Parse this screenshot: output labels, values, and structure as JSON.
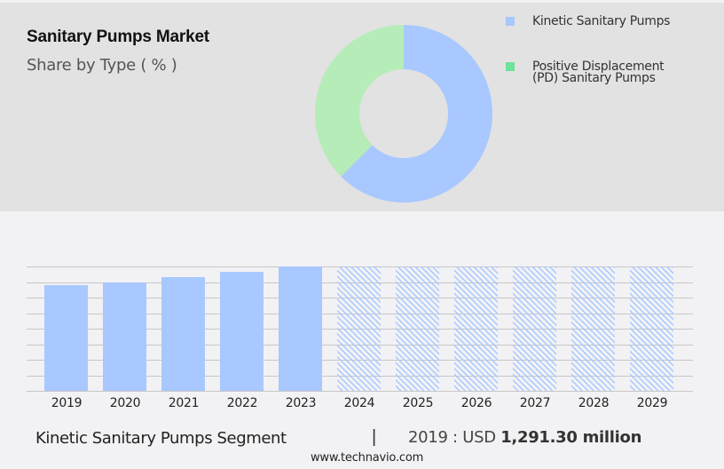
{
  "header": {
    "title": "Sanitary Pumps Market",
    "subtitle": "Share by Type ( % )"
  },
  "colors": {
    "top_panel_bg": "#e2e2e2",
    "page_bg": "#f2f2f4",
    "kinetic": "#a8c8ff",
    "pd_donut": "#b5ecb8",
    "pd_legend": "#6ee39a",
    "gridline": "#c7c7c7"
  },
  "legend": {
    "items": [
      {
        "label": "Kinetic Sanitary Pumps",
        "color": "#a8c8ff"
      },
      {
        "label_line1": "Positive Displacement",
        "label_line2": "(PD) Sanitary Pumps",
        "color": "#6ee39a"
      }
    ]
  },
  "footer": {
    "segment_label": "Kinetic Sanitary Pumps Segment",
    "separator": "|",
    "value_prefix": "2019 : USD ",
    "value_bold": "1,291.30 million",
    "website": "www.technavio.com"
  },
  "chart_data": [
    {
      "type": "pie",
      "variant": "donut",
      "title": "Sanitary Pumps Market",
      "subtitle": "Share by Type ( % )",
      "categories": [
        "Kinetic Sanitary Pumps",
        "Positive Displacement (PD) Sanitary Pumps"
      ],
      "values": [
        62.5,
        37.5
      ],
      "colors": [
        "#a8c8ff",
        "#b5ecb8"
      ],
      "legend_position": "right"
    },
    {
      "type": "bar",
      "title": "Kinetic Sanitary Pumps Segment",
      "categories": [
        "2019",
        "2020",
        "2021",
        "2022",
        "2023",
        "2024",
        "2025",
        "2026",
        "2027",
        "2028",
        "2029"
      ],
      "series": [
        {
          "name": "Kinetic Sanitary Pumps (USD million)",
          "values": [
            1291.3,
            1327,
            1389,
            1454,
            1519,
            null,
            null,
            null,
            null,
            null,
            null
          ]
        }
      ],
      "forecast_years": [
        "2024",
        "2025",
        "2026",
        "2027",
        "2028",
        "2029"
      ],
      "forecast_style": "hatched",
      "annotation": "2019 : USD 1,291.30 million",
      "xlabel": "",
      "ylabel": "",
      "ylim": [
        0,
        1519
      ],
      "grid": true,
      "y_axis_visible": false
    }
  ]
}
